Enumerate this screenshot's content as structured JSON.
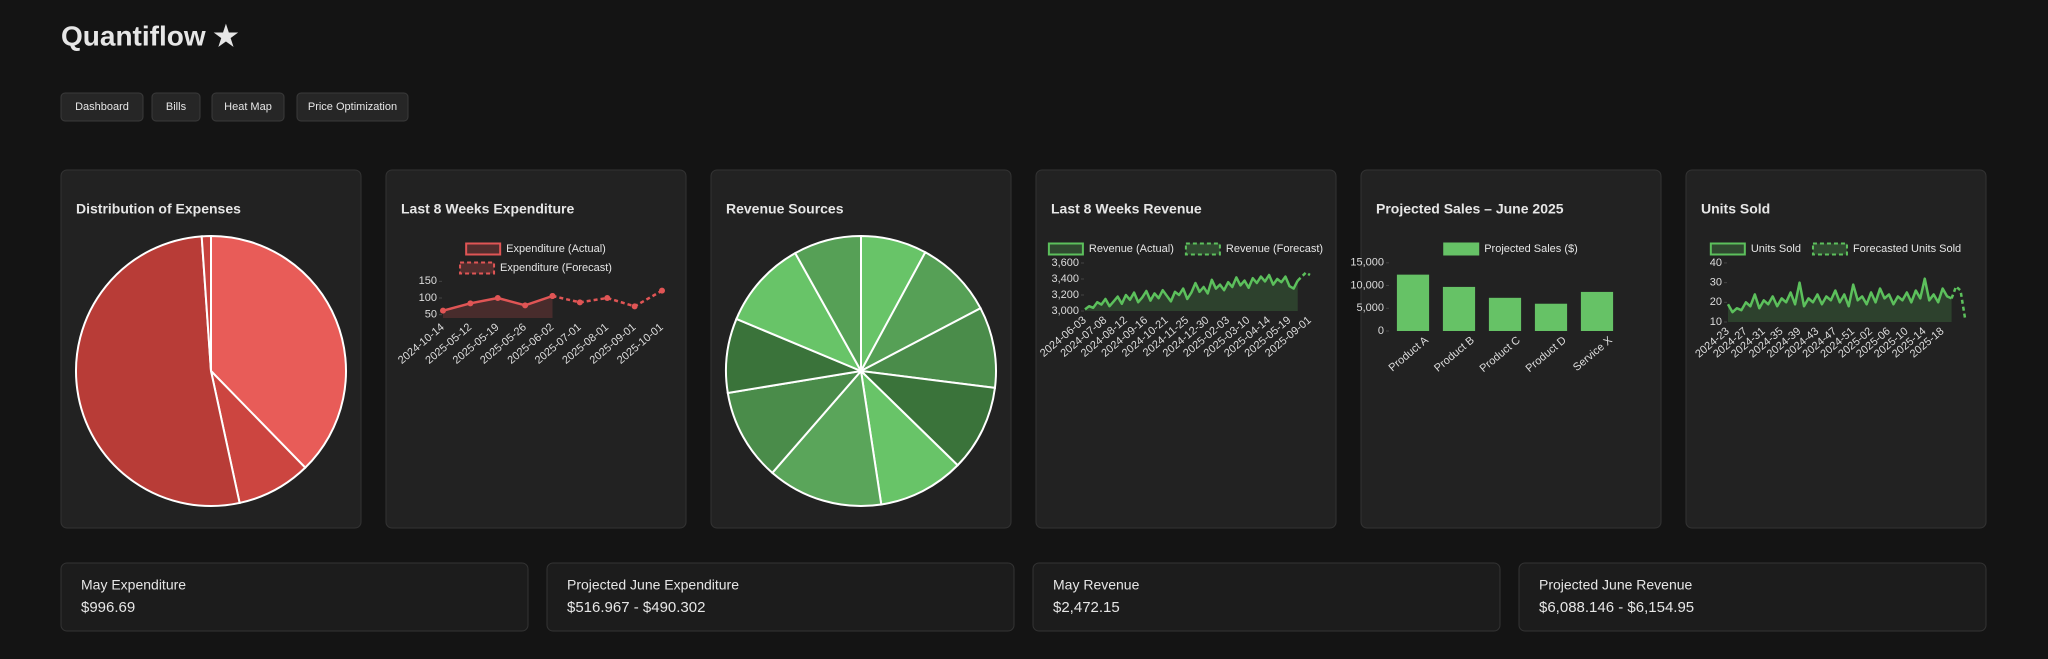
{
  "header": {
    "title": "Quantiflow ★"
  },
  "nav": [
    "Dashboard",
    "Bills",
    "Heat Map",
    "Price Optimization"
  ],
  "chart_data": [
    {
      "type": "pie",
      "title": "Distribution of Expenses",
      "values": [
        37.7,
        8.9,
        52.3,
        1.1
      ],
      "colors": [
        "#e85c58",
        "#cc4540",
        "#b83c37",
        "#c8423e"
      ]
    },
    {
      "type": "line",
      "title": "Last 8 Weeks Expenditure",
      "categories": [
        "2024-10-14",
        "2025-05-12",
        "2025-05-19",
        "2025-05-26",
        "2025-06-02",
        "2025-07-01",
        "2025-08-01",
        "2025-09-01",
        "2025-10-01"
      ],
      "series": [
        {
          "name": "Expenditure (Actual)",
          "color": "#e05555",
          "area": true,
          "markers": true,
          "values": [
            62,
            84,
            100,
            78,
            106,
            null,
            null,
            null,
            null
          ]
        },
        {
          "name": "Expenditure (Forecast)",
          "color": "#e05555",
          "dash": true,
          "markers": true,
          "values": [
            null,
            null,
            null,
            null,
            106,
            87,
            100,
            75,
            122
          ]
        }
      ],
      "ylim": [
        40,
        160
      ],
      "yticks": [
        50,
        100,
        150
      ]
    },
    {
      "type": "pie",
      "title": "Revenue Sources",
      "values": [
        7.9,
        9.4,
        9.7,
        10.3,
        10.3,
        13.8,
        11.0,
        8.9,
        10.6,
        8.1
      ],
      "colors": [
        "#68c468",
        "#56a056",
        "#4a8c4a",
        "#3a733a",
        "#68c468",
        "#5aa55a",
        "#4a8c4a",
        "#3a733a",
        "#68c468",
        "#56a056"
      ]
    },
    {
      "type": "line",
      "title": "Last 8 Weeks Revenue",
      "categories": [
        "2024-06-03",
        null,
        null,
        null,
        null,
        "2024-07-08",
        null,
        null,
        null,
        null,
        "2024-08-12",
        null,
        null,
        null,
        null,
        "2024-09-16",
        null,
        null,
        null,
        null,
        "2024-10-21",
        null,
        null,
        null,
        null,
        "2024-11-25",
        null,
        null,
        null,
        null,
        "2024-12-30",
        null,
        null,
        null,
        null,
        "2025-02-03",
        null,
        null,
        null,
        null,
        "2025-03-10",
        null,
        null,
        null,
        null,
        "2025-04-14",
        null,
        null,
        null,
        null,
        "2025-05-19",
        null,
        null,
        null,
        null,
        "2025-09-01"
      ],
      "series": [
        {
          "name": "Revenue (Actual)",
          "color": "#5cc05c",
          "area": true,
          "values": [
            3020,
            3060,
            3040,
            3110,
            3080,
            3150,
            3060,
            3120,
            3180,
            3090,
            3200,
            3140,
            3230,
            3110,
            3170,
            3250,
            3130,
            3220,
            3160,
            3260,
            3190,
            3120,
            3240,
            3200,
            3280,
            3150,
            3230,
            3350,
            3240,
            3300,
            3220,
            3390,
            3280,
            3330,
            3260,
            3360,
            3300,
            3420,
            3320,
            3380,
            3290,
            3410,
            3350,
            3430,
            3370,
            3450,
            3330,
            3400,
            3360,
            3430,
            3310,
            3280,
            3380,
            null,
            null,
            null
          ]
        },
        {
          "name": "Revenue (Forecast)",
          "color": "#5cc05c",
          "dash": true,
          "values": [
            null,
            null,
            null,
            null,
            null,
            null,
            null,
            null,
            null,
            null,
            null,
            null,
            null,
            null,
            null,
            null,
            null,
            null,
            null,
            null,
            null,
            null,
            null,
            null,
            null,
            null,
            null,
            null,
            null,
            null,
            null,
            null,
            null,
            null,
            null,
            null,
            null,
            null,
            null,
            null,
            null,
            null,
            null,
            null,
            null,
            null,
            null,
            null,
            null,
            null,
            null,
            null,
            3380,
            3430,
            3480,
            3450
          ]
        }
      ],
      "ylim": [
        3000,
        3650
      ],
      "yticks": [
        {
          "value": 3000,
          "label": "3,000"
        },
        {
          "value": 3200,
          "label": "3,200"
        },
        {
          "value": 3400,
          "label": "3,400"
        },
        {
          "value": 3600,
          "label": "3,600"
        }
      ]
    },
    {
      "type": "bar",
      "title": "Projected Sales – June 2025",
      "categories": [
        "Product A",
        "Product B",
        "Product C",
        "Product D",
        "Service X"
      ],
      "series": [
        {
          "name": "Projected Sales ($)",
          "color": "#66c266",
          "values": [
            12400,
            9700,
            7300,
            6000,
            8600
          ]
        }
      ],
      "ylim": [
        0,
        16500
      ],
      "yticks": [
        0,
        {
          "value": 5000,
          "label": "5,000"
        },
        {
          "value": 10000,
          "label": "10,000"
        },
        {
          "value": 15000,
          "label": "15,000"
        }
      ]
    },
    {
      "type": "line",
      "title": "Units Sold",
      "categories": [
        "2024-23",
        null,
        null,
        null,
        "2024-27",
        null,
        null,
        null,
        "2024-31",
        null,
        null,
        null,
        "2024-35",
        null,
        null,
        null,
        "2024-39",
        null,
        null,
        null,
        "2024-43",
        null,
        null,
        null,
        "2024-47",
        null,
        null,
        null,
        "2024-51",
        null,
        null,
        null,
        "2025-02",
        null,
        null,
        null,
        "2025-06",
        null,
        null,
        null,
        "2025-10",
        null,
        null,
        null,
        "2025-14",
        null,
        null,
        null,
        "2025-18",
        null,
        null,
        null,
        null,
        null
      ],
      "series": [
        {
          "name": "Units Sold",
          "color": "#5cc05c",
          "area": true,
          "values": [
            19,
            15,
            17,
            16,
            20,
            18,
            24,
            17,
            21,
            19,
            23,
            18,
            22,
            20,
            25,
            19,
            30,
            18,
            22,
            20,
            24,
            19,
            23,
            21,
            26,
            20,
            24,
            18,
            29,
            21,
            23,
            19,
            25,
            20,
            27,
            22,
            24,
            19,
            23,
            21,
            25,
            20,
            26,
            22,
            32,
            21,
            24,
            20,
            27,
            23,
            22,
            null,
            null,
            null
          ]
        },
        {
          "name": "Forecasted Units Sold",
          "color": "#5cc05c",
          "dash": true,
          "values": [
            null,
            null,
            null,
            null,
            null,
            null,
            null,
            null,
            null,
            null,
            null,
            null,
            null,
            null,
            null,
            null,
            null,
            null,
            null,
            null,
            null,
            null,
            null,
            null,
            null,
            null,
            null,
            null,
            null,
            null,
            null,
            null,
            null,
            null,
            null,
            null,
            null,
            null,
            null,
            null,
            null,
            null,
            null,
            null,
            null,
            null,
            null,
            null,
            null,
            null,
            22,
            28,
            26,
            12
          ]
        }
      ],
      "ylim": [
        10,
        42
      ],
      "yticks": [
        10,
        20,
        30,
        40
      ]
    }
  ],
  "stats": [
    {
      "label": "May Expenditure",
      "value": "$996.69"
    },
    {
      "label": "Projected June Expenditure",
      "value": "$516.967 - $490.302"
    },
    {
      "label": "May Revenue",
      "value": "$2,472.15"
    },
    {
      "label": "Projected June Revenue",
      "value": "$6,088.146 - $6,154.95"
    }
  ]
}
